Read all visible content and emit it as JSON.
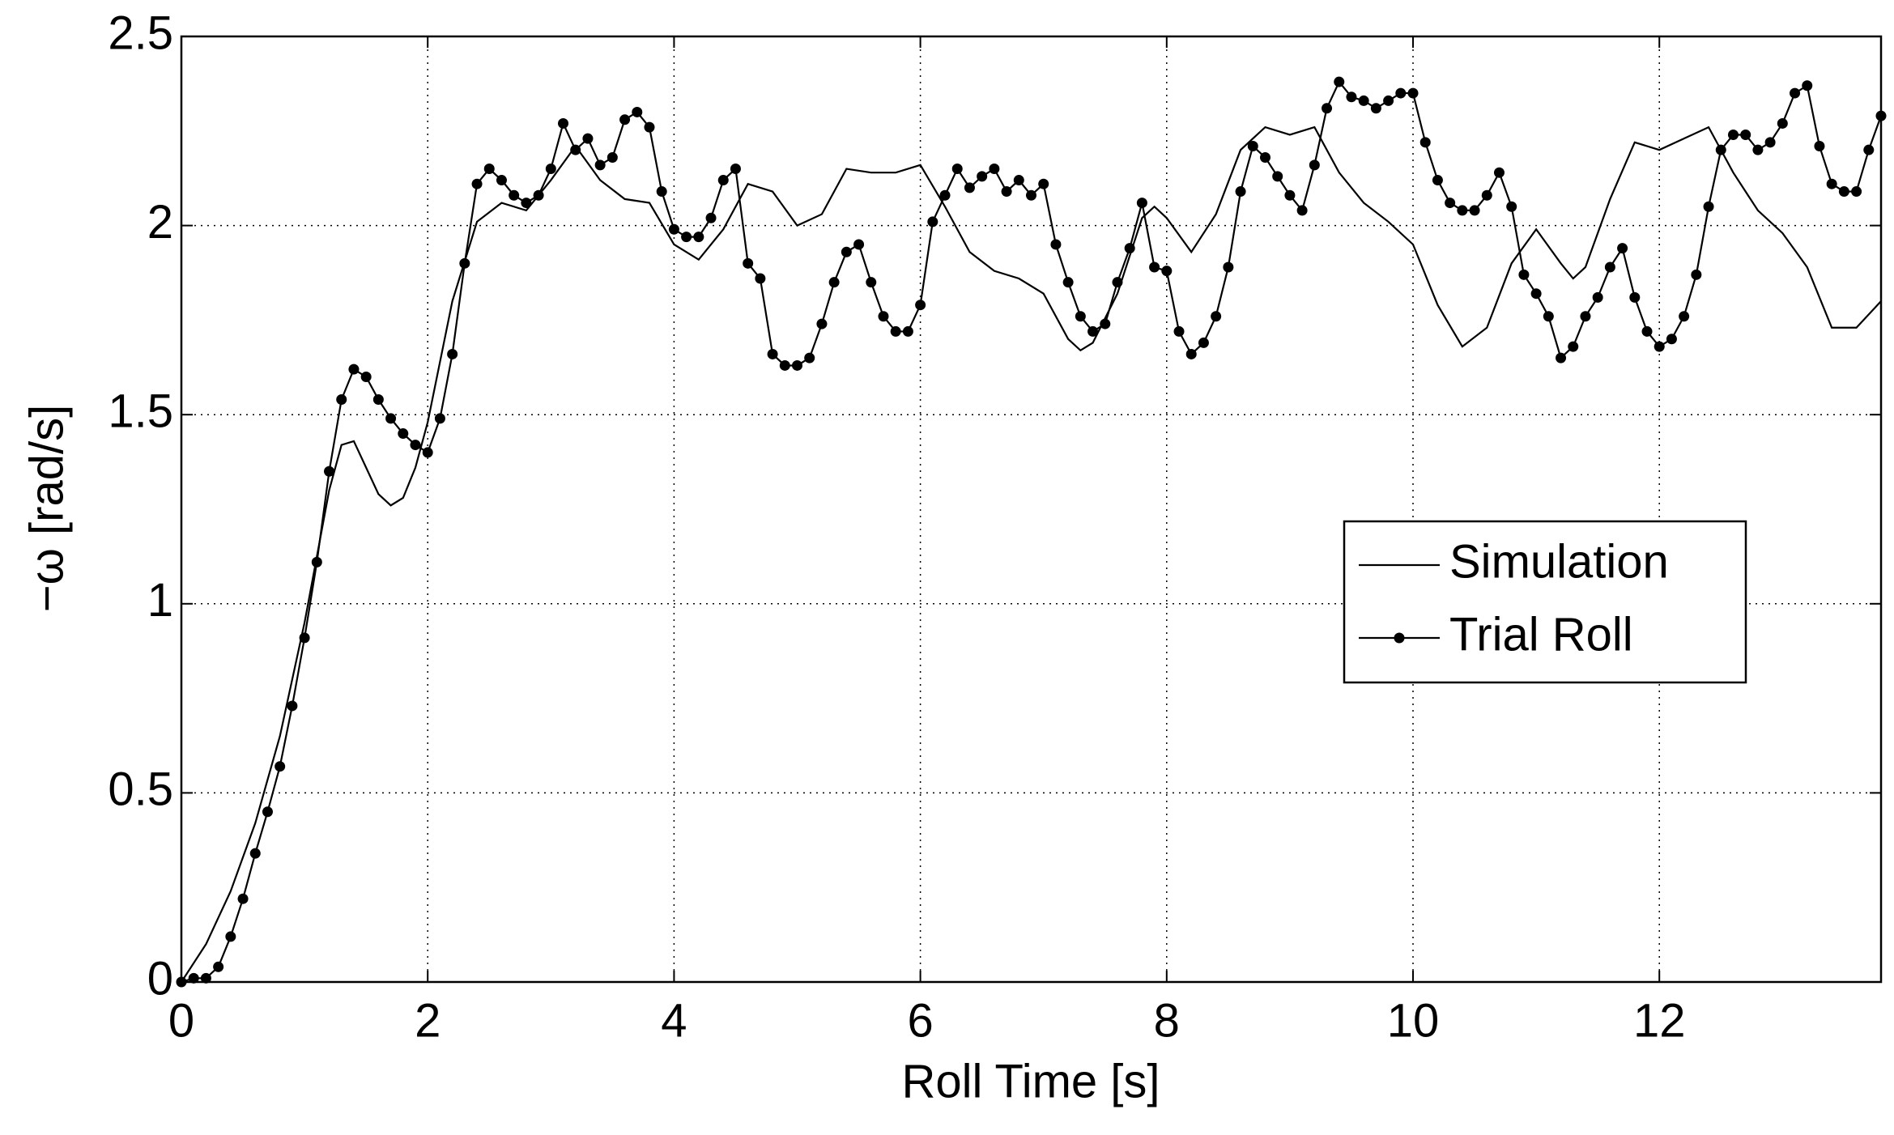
{
  "chart_data": {
    "type": "line",
    "xlabel": "Roll Time [s]",
    "ylabel": "−ω [rad/s]",
    "xlim": [
      0,
      13.8
    ],
    "ylim": [
      0,
      2.5
    ],
    "xticks": [
      0,
      2,
      4,
      6,
      8,
      10,
      12
    ],
    "yticks": [
      0,
      0.5,
      1,
      1.5,
      2,
      2.5
    ],
    "grid": true,
    "legend": "right",
    "series": [
      {
        "name": "Simulation",
        "color": "#000000",
        "marker": false,
        "x": [
          0,
          0.2,
          0.4,
          0.6,
          0.8,
          1.0,
          1.2,
          1.3,
          1.4,
          1.5,
          1.6,
          1.7,
          1.8,
          1.9,
          2.0,
          2.2,
          2.4,
          2.6,
          2.8,
          3.0,
          3.2,
          3.4,
          3.6,
          3.8,
          4.0,
          4.2,
          4.4,
          4.6,
          4.8,
          5.0,
          5.2,
          5.4,
          5.6,
          5.8,
          6.0,
          6.2,
          6.4,
          6.6,
          6.8,
          7.0,
          7.2,
          7.3,
          7.4,
          7.6,
          7.8,
          7.9,
          8.0,
          8.2,
          8.4,
          8.6,
          8.8,
          9.0,
          9.2,
          9.4,
          9.6,
          9.8,
          10.0,
          10.2,
          10.4,
          10.6,
          10.8,
          11.0,
          11.2,
          11.3,
          11.4,
          11.6,
          11.8,
          12.0,
          12.2,
          12.4,
          12.6,
          12.8,
          13.0,
          13.2,
          13.4,
          13.6,
          13.8
        ],
        "values": [
          0,
          0.1,
          0.24,
          0.42,
          0.65,
          0.95,
          1.3,
          1.42,
          1.43,
          1.36,
          1.29,
          1.26,
          1.28,
          1.36,
          1.48,
          1.8,
          2.01,
          2.06,
          2.04,
          2.12,
          2.21,
          2.12,
          2.07,
          2.06,
          1.95,
          1.91,
          1.99,
          2.11,
          2.09,
          2.0,
          2.03,
          2.15,
          2.14,
          2.14,
          2.16,
          2.05,
          1.93,
          1.88,
          1.86,
          1.82,
          1.7,
          1.67,
          1.69,
          1.82,
          2.02,
          2.05,
          2.02,
          1.93,
          2.03,
          2.2,
          2.26,
          2.24,
          2.26,
          2.14,
          2.06,
          2.01,
          1.95,
          1.79,
          1.68,
          1.73,
          1.9,
          1.99,
          1.9,
          1.86,
          1.89,
          2.07,
          2.22,
          2.2,
          2.23,
          2.26,
          2.14,
          2.04,
          1.98,
          1.89,
          1.73,
          1.73,
          1.8
        ]
      },
      {
        "name": "Trial Roll",
        "color": "#000000",
        "marker": true,
        "x": [
          0,
          0.1,
          0.2,
          0.3,
          0.4,
          0.5,
          0.6,
          0.7,
          0.8,
          0.9,
          1.0,
          1.1,
          1.2,
          1.3,
          1.4,
          1.5,
          1.6,
          1.7,
          1.8,
          1.9,
          2.0,
          2.1,
          2.2,
          2.3,
          2.4,
          2.5,
          2.6,
          2.7,
          2.8,
          2.9,
          3.0,
          3.1,
          3.2,
          3.3,
          3.4,
          3.5,
          3.6,
          3.7,
          3.8,
          3.9,
          4.0,
          4.1,
          4.2,
          4.3,
          4.4,
          4.5,
          4.6,
          4.7,
          4.8,
          4.9,
          5.0,
          5.1,
          5.2,
          5.3,
          5.4,
          5.5,
          5.6,
          5.7,
          5.8,
          5.9,
          6.0,
          6.1,
          6.2,
          6.3,
          6.4,
          6.5,
          6.6,
          6.7,
          6.8,
          6.9,
          7.0,
          7.1,
          7.2,
          7.3,
          7.4,
          7.5,
          7.6,
          7.7,
          7.8,
          7.9,
          8.0,
          8.1,
          8.2,
          8.3,
          8.4,
          8.5,
          8.6,
          8.7,
          8.8,
          8.9,
          9.0,
          9.1,
          9.2,
          9.3,
          9.4,
          9.5,
          9.6,
          9.7,
          9.8,
          9.9,
          10.0,
          10.1,
          10.2,
          10.3,
          10.4,
          10.5,
          10.6,
          10.7,
          10.8,
          10.9,
          11.0,
          11.1,
          11.2,
          11.3,
          11.4,
          11.5,
          11.6,
          11.7,
          11.8,
          11.9,
          12.0,
          12.1,
          12.2,
          12.3,
          12.4,
          12.5,
          12.6,
          12.7,
          12.8,
          12.9,
          13.0,
          13.1,
          13.2,
          13.3,
          13.4,
          13.5,
          13.6,
          13.7,
          13.8
        ],
        "values": [
          0,
          0.01,
          0.01,
          0.04,
          0.12,
          0.22,
          0.34,
          0.45,
          0.57,
          0.73,
          0.91,
          1.11,
          1.35,
          1.54,
          1.62,
          1.6,
          1.54,
          1.49,
          1.45,
          1.42,
          1.4,
          1.49,
          1.66,
          1.9,
          2.11,
          2.15,
          2.12,
          2.08,
          2.06,
          2.08,
          2.15,
          2.27,
          2.2,
          2.23,
          2.16,
          2.18,
          2.28,
          2.3,
          2.26,
          2.09,
          1.99,
          1.97,
          1.97,
          2.02,
          2.12,
          2.15,
          1.9,
          1.86,
          1.66,
          1.63,
          1.63,
          1.65,
          1.74,
          1.85,
          1.93,
          1.95,
          1.85,
          1.76,
          1.72,
          1.72,
          1.79,
          2.01,
          2.08,
          2.15,
          2.1,
          2.13,
          2.15,
          2.09,
          2.12,
          2.08,
          2.11,
          1.95,
          1.85,
          1.76,
          1.72,
          1.74,
          1.85,
          1.94,
          2.06,
          1.89,
          1.88,
          1.72,
          1.66,
          1.69,
          1.76,
          1.89,
          2.09,
          2.21,
          2.18,
          2.13,
          2.08,
          2.04,
          2.16,
          2.31,
          2.38,
          2.34,
          2.33,
          2.31,
          2.33,
          2.35,
          2.35,
          2.22,
          2.12,
          2.06,
          2.04,
          2.04,
          2.08,
          2.14,
          2.05,
          1.87,
          1.82,
          1.76,
          1.65,
          1.68,
          1.76,
          1.81,
          1.89,
          1.94,
          1.81,
          1.72,
          1.68,
          1.7,
          1.76,
          1.87,
          2.05,
          2.2,
          2.24,
          2.24,
          2.2,
          2.22,
          2.27,
          2.35,
          2.37,
          2.21,
          2.11,
          2.09,
          2.09,
          2.2,
          2.29
        ]
      }
    ]
  }
}
